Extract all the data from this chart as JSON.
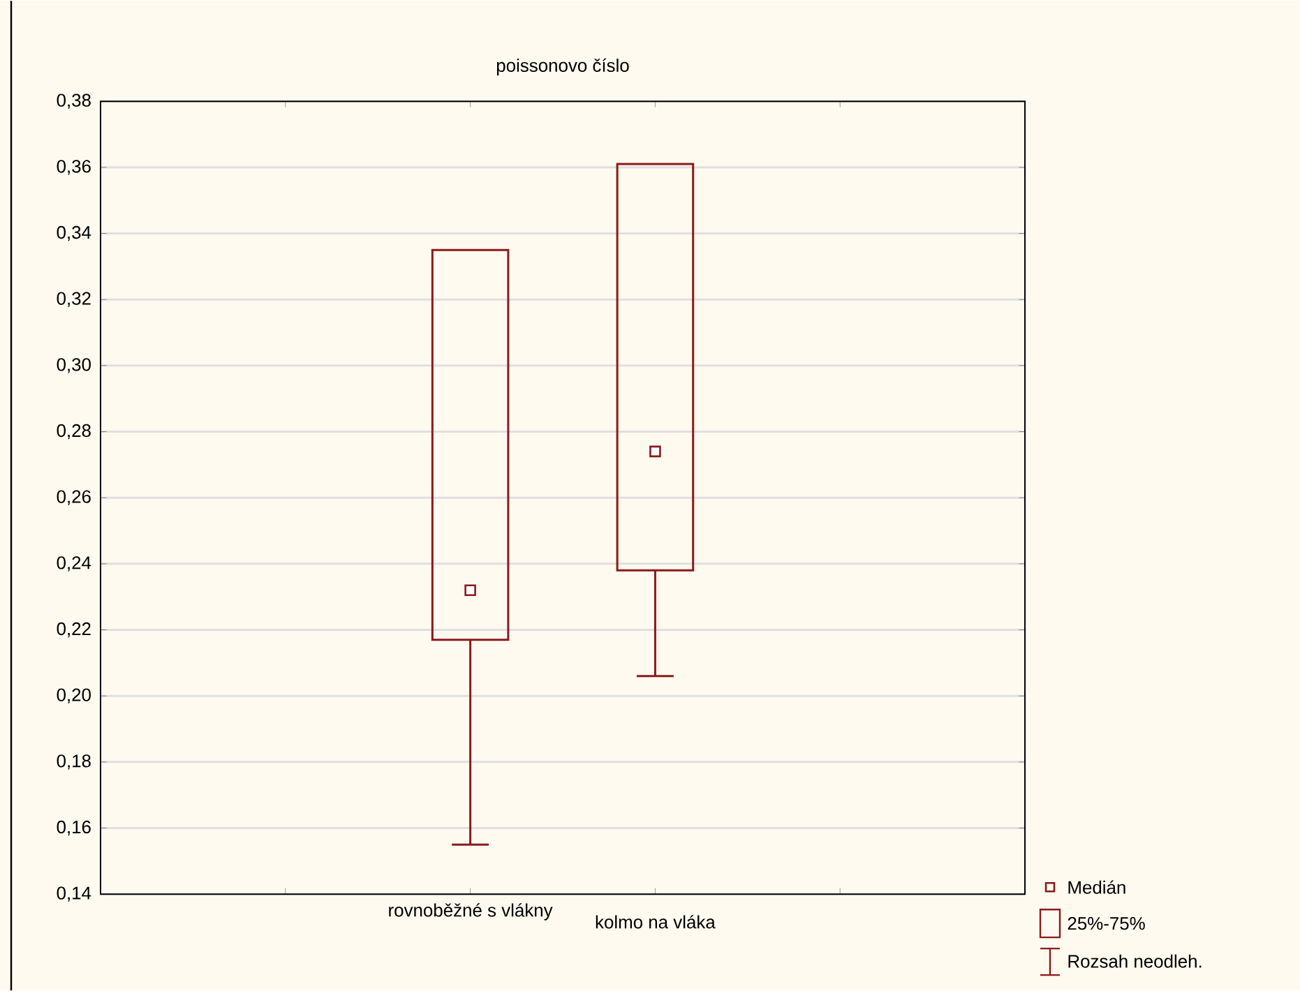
{
  "chart_data": {
    "type": "box",
    "title": "poissonovo číslo",
    "categories": [
      "rovnoběžné s vlákny",
      "kolmo na vláka"
    ],
    "boxes": [
      {
        "low": 0.155,
        "q1": 0.217,
        "median": 0.232,
        "q3": 0.335,
        "high": 0.335
      },
      {
        "low": 0.206,
        "q1": 0.238,
        "median": 0.274,
        "q3": 0.361,
        "high": 0.361
      }
    ],
    "color": "#8b1a1a",
    "ylim": [
      0.14,
      0.38
    ],
    "yticks": [
      {
        "value": 0.14,
        "label": "0,14"
      },
      {
        "value": 0.16,
        "label": "0,16"
      },
      {
        "value": 0.18,
        "label": "0,18"
      },
      {
        "value": 0.2,
        "label": "0,20"
      },
      {
        "value": 0.22,
        "label": "0,22"
      },
      {
        "value": 0.24,
        "label": "0,24"
      },
      {
        "value": 0.26,
        "label": "0,26"
      },
      {
        "value": 0.28,
        "label": "0,28"
      },
      {
        "value": 0.3,
        "label": "0,30"
      },
      {
        "value": 0.32,
        "label": "0,32"
      },
      {
        "value": 0.34,
        "label": "0,34"
      },
      {
        "value": 0.36,
        "label": "0,36"
      },
      {
        "value": 0.38,
        "label": "0,38"
      }
    ],
    "grid": "y",
    "annotations": [
      "Medián",
      "25%-75%",
      "Rozsah neodleh."
    ]
  }
}
